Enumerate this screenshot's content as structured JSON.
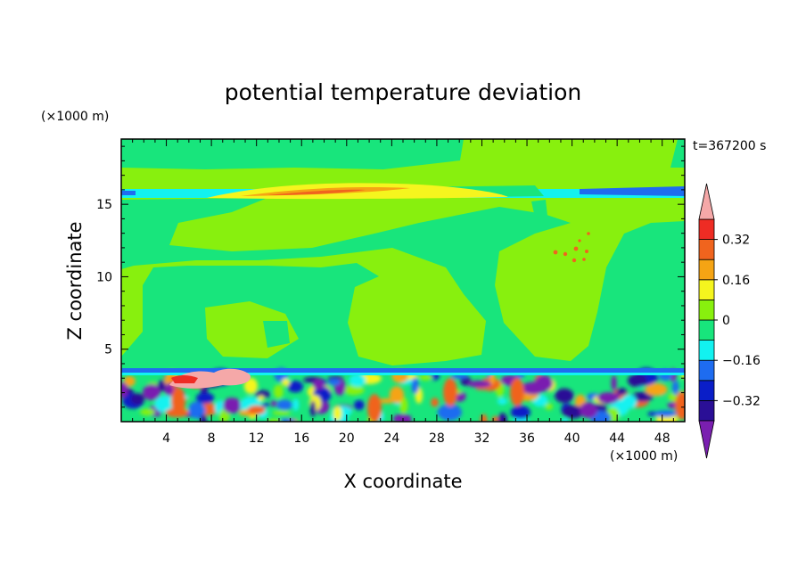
{
  "chart_data": {
    "type": "heatmap",
    "title": "potential temperature deviation",
    "xlabel": "X coordinate",
    "ylabel": "Z coordinate",
    "x_unit": "(×1000 m)",
    "y_unit": "(×1000 m)",
    "time_label": "t=367200 s",
    "xlim": [
      0,
      50
    ],
    "ylim": [
      0,
      19.5
    ],
    "x_ticks": [
      4,
      8,
      12,
      16,
      20,
      24,
      28,
      32,
      36,
      40,
      44,
      48
    ],
    "y_ticks": [
      5,
      10,
      15
    ],
    "colorbar": {
      "levels": [
        -0.4,
        -0.32,
        -0.24,
        -0.16,
        -0.08,
        0,
        0.08,
        0.16,
        0.24,
        0.32,
        0.4
      ],
      "labels": [
        "0.32",
        "0.16",
        "0",
        "−0.16",
        "−0.32"
      ],
      "label_values": [
        0.32,
        0.16,
        0,
        -0.16,
        -0.32
      ],
      "colors": [
        "#7a1fb0",
        "#2a0f96",
        "#0a1ec8",
        "#1e6cf0",
        "#12f2f0",
        "#18e57c",
        "#88f00e",
        "#f5f51e",
        "#f5a414",
        "#f0641e",
        "#ee2c24",
        "#f5a8a8"
      ],
      "extend": "both"
    },
    "features": {
      "lower_layer_top_km": 3.6,
      "upper_band_z_km": 16,
      "warm_anomaly_x_km": [
        5,
        11
      ],
      "warm_anomaly_z_km": [
        2.8,
        3.6
      ]
    }
  }
}
